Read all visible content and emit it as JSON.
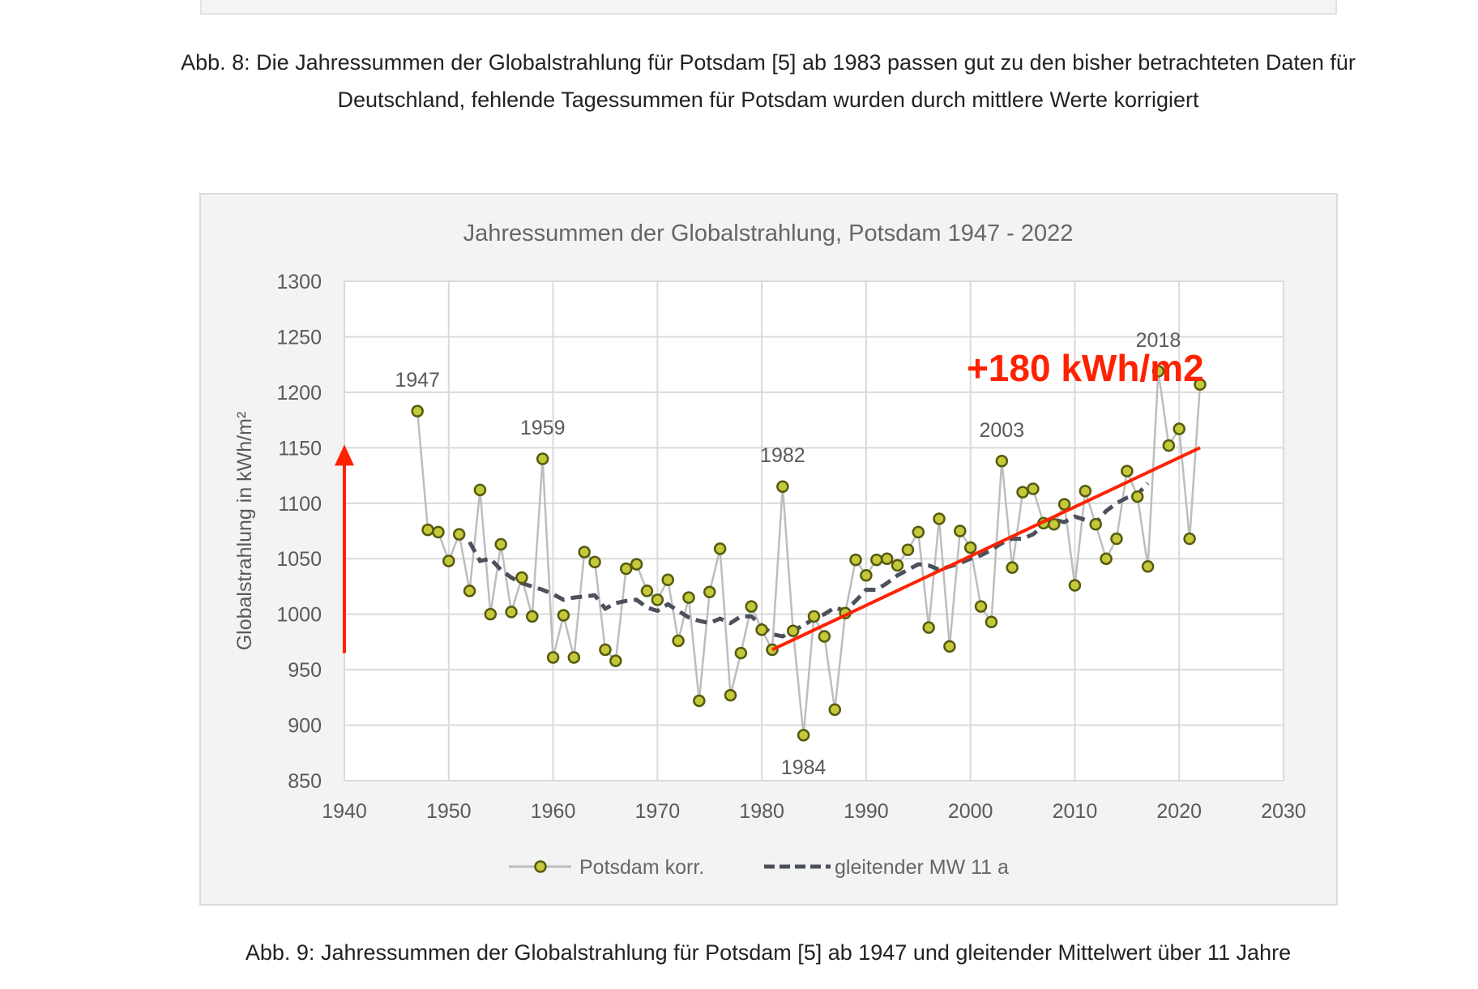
{
  "captions": {
    "fig8_line1": "Abb. 8: Die Jahressummen der Globalstrahlung für Potsdam [5] ab 1983 passen gut zu den bisher betrachteten Daten für",
    "fig8_line2": "Deutschland, fehlende Tagessummen für Potsdam wurden durch mittlere Werte korrigiert",
    "fig9": "Abb. 9: Jahressummen der Globalstrahlung für Potsdam [5] ab 1947 und gleitender Mittelwert über 11 Jahre"
  },
  "chart_data": {
    "type": "line",
    "title": "Jahressummen der Globalstrahlung, Potsdam 1947 - 2022",
    "xlabel": "",
    "ylabel": "Globalstrahlung in kWh/m²",
    "xlim": [
      1940,
      2030
    ],
    "ylim": [
      850,
      1300
    ],
    "xticks": [
      "1940",
      "1950",
      "1960",
      "1970",
      "1980",
      "1990",
      "2000",
      "2010",
      "2020",
      "2030"
    ],
    "yticks": [
      "850",
      "900",
      "950",
      "1000",
      "1050",
      "1100",
      "1150",
      "1200",
      "1250",
      "1300"
    ],
    "grid": true,
    "legend_position": "bottom",
    "colors": {
      "point_fill": "#c5c83a",
      "point_stroke": "#555a10",
      "line": "#bdbdbd",
      "ma": "#4b505c",
      "annotation": "#ff2200"
    },
    "series": [
      {
        "name": "Potsdam korr.",
        "x": [
          1947,
          1948,
          1949,
          1950,
          1951,
          1952,
          1953,
          1954,
          1955,
          1956,
          1957,
          1958,
          1959,
          1960,
          1961,
          1962,
          1963,
          1964,
          1965,
          1966,
          1967,
          1968,
          1969,
          1970,
          1971,
          1972,
          1973,
          1974,
          1975,
          1976,
          1977,
          1978,
          1979,
          1980,
          1981,
          1982,
          1983,
          1984,
          1985,
          1986,
          1987,
          1988,
          1989,
          1990,
          1991,
          1992,
          1993,
          1994,
          1995,
          1996,
          1997,
          1998,
          1999,
          2000,
          2001,
          2002,
          2003,
          2004,
          2005,
          2006,
          2007,
          2008,
          2009,
          2010,
          2011,
          2012,
          2013,
          2014,
          2015,
          2016,
          2017,
          2018,
          2019,
          2020,
          2021,
          2022
        ],
        "y": [
          1183,
          1076,
          1074,
          1048,
          1072,
          1021,
          1112,
          1000,
          1063,
          1002,
          1033,
          998,
          1140,
          961,
          999,
          961,
          1056,
          1047,
          968,
          958,
          1041,
          1045,
          1021,
          1013,
          1031,
          976,
          1015,
          922,
          1020,
          1059,
          927,
          965,
          1007,
          986,
          968,
          1115,
          985,
          891,
          998,
          980,
          914,
          1001,
          1049,
          1035,
          1049,
          1050,
          1044,
          1058,
          1074,
          988,
          1086,
          971,
          1075,
          1060,
          1007,
          993,
          1138,
          1042,
          1110,
          1113,
          1082,
          1081,
          1099,
          1026,
          1111,
          1081,
          1050,
          1068,
          1129,
          1106,
          1043,
          1219,
          1152,
          1167,
          1068,
          1207
        ]
      },
      {
        "name": "gleitender MW 11 a",
        "x": [
          1952,
          1953,
          1954,
          1955,
          1956,
          1957,
          1958,
          1959,
          1960,
          1961,
          1962,
          1963,
          1964,
          1965,
          1966,
          1967,
          1968,
          1969,
          1970,
          1971,
          1972,
          1973,
          1974,
          1975,
          1976,
          1977,
          1978,
          1979,
          1980,
          1981,
          1982,
          1983,
          1984,
          1985,
          1986,
          1987,
          1988,
          1989,
          1990,
          1991,
          1992,
          1993,
          1994,
          1995,
          1996,
          1997,
          1998,
          1999,
          2000,
          2001,
          2002,
          2003,
          2004,
          2005,
          2006,
          2007,
          2008,
          2009,
          2010,
          2011,
          2012,
          2013,
          2014,
          2015,
          2016,
          2017
        ],
        "y": [
          1065,
          1048,
          1050,
          1040,
          1033,
          1028,
          1025,
          1022,
          1018,
          1013,
          1015,
          1016,
          1017,
          1005,
          1010,
          1012,
          1013,
          1006,
          1003,
          1009,
          1003,
          997,
          994,
          992,
          996,
          992,
          998,
          998,
          990,
          982,
          980,
          985,
          990,
          996,
          1000,
          1006,
          1003,
          1012,
          1022,
          1022,
          1028,
          1035,
          1040,
          1045,
          1044,
          1040,
          1043,
          1046,
          1050,
          1053,
          1058,
          1064,
          1068,
          1068,
          1072,
          1080,
          1085,
          1083,
          1088,
          1085,
          1082,
          1093,
          1100,
          1105,
          1108,
          1118
        ]
      }
    ],
    "data_labels": [
      {
        "text": "1947",
        "x": 1947,
        "y": 1183,
        "position": "above"
      },
      {
        "text": "1959",
        "x": 1959,
        "y": 1140,
        "position": "above"
      },
      {
        "text": "1982",
        "x": 1982,
        "y": 1115,
        "position": "above"
      },
      {
        "text": "1984",
        "x": 1984,
        "y": 891,
        "position": "below"
      },
      {
        "text": "2003",
        "x": 2003,
        "y": 1138,
        "position": "above"
      },
      {
        "text": "2018",
        "x": 2018,
        "y": 1219,
        "position": "above"
      }
    ],
    "annotations": {
      "text": "+180 kWh/m2",
      "text_at": {
        "x": 2011,
        "y": 1210
      },
      "arrow": {
        "x": 1940,
        "from": 965,
        "to": 1150
      },
      "trend_line": {
        "from": [
          1981,
          968
        ],
        "to": [
          2022,
          1150
        ]
      }
    }
  }
}
